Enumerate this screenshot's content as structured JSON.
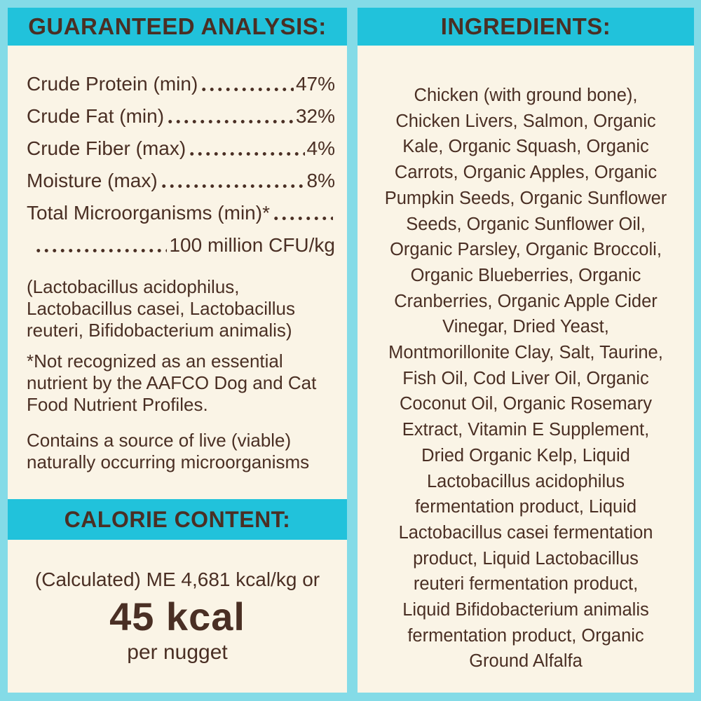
{
  "theme": {
    "bg": "#84dbe7",
    "panel-bg": "#faf4e6",
    "header-bg": "#21c2db",
    "ink": "#4a2f24"
  },
  "guaranteed_analysis": {
    "title": "GUARANTEED ANALYSIS:",
    "rows": [
      {
        "label": "Crude Protein (min)",
        "value": "47%"
      },
      {
        "label": "Crude Fat (min)",
        "value": "32%"
      },
      {
        "label": "Crude Fiber (max)",
        "value": "4%"
      },
      {
        "label": "Moisture (max)",
        "value": "8%"
      },
      {
        "label": "Total Microorganisms (min)*",
        "value": ""
      },
      {
        "label": "",
        "value": "100 million CFU/kg"
      }
    ],
    "microorganisms_note": [
      "(Lactobacillus acidophilus,",
      "Lactobacillus casei, Lactobacillus",
      "reuteri, Bifidobacterium animalis)"
    ],
    "aafco_footnote": [
      "*Not recognized as an essential",
      "nutrient by the AAFCO Dog and Cat",
      "Food Nutrient Profiles."
    ],
    "viable_note": [
      "Contains a source of live (viable)",
      "naturally occurring microorganisms"
    ]
  },
  "calorie_content": {
    "title": "CALORIE CONTENT:",
    "calculated_line": "(Calculated) ME 4,681 kcal/kg or",
    "kcal_value": "45 kcal",
    "per_unit": "per nugget"
  },
  "ingredients": {
    "title": "INGREDIENTS:",
    "lines": [
      "Chicken (with ground bone),",
      "Chicken Livers, Salmon, Organic",
      "Kale, Organic Squash, Organic",
      "Carrots, Organic Apples, Organic",
      "Pumpkin Seeds, Organic Sunflower",
      "Seeds, Organic Sunflower Oil,",
      "Organic Parsley, Organic Broccoli,",
      "Organic Blueberries, Organic",
      "Cranberries, Organic Apple Cider",
      "Vinegar, Dried Yeast,",
      "Montmorillonite Clay, Salt, Taurine,",
      "Fish Oil, Cod Liver Oil, Organic",
      "Coconut Oil, Organic Rosemary",
      "Extract, Vitamin E Supplement,",
      "Dried Organic Kelp, Liquid",
      "Lactobacillus acidophilus",
      "fermentation product, Liquid",
      "Lactobacillus casei fermentation",
      "product, Liquid Lactobacillus",
      "reuteri fermentation product,",
      "Liquid Bifidobacterium animalis",
      "fermentation product, Organic",
      "Ground Alfalfa"
    ]
  }
}
